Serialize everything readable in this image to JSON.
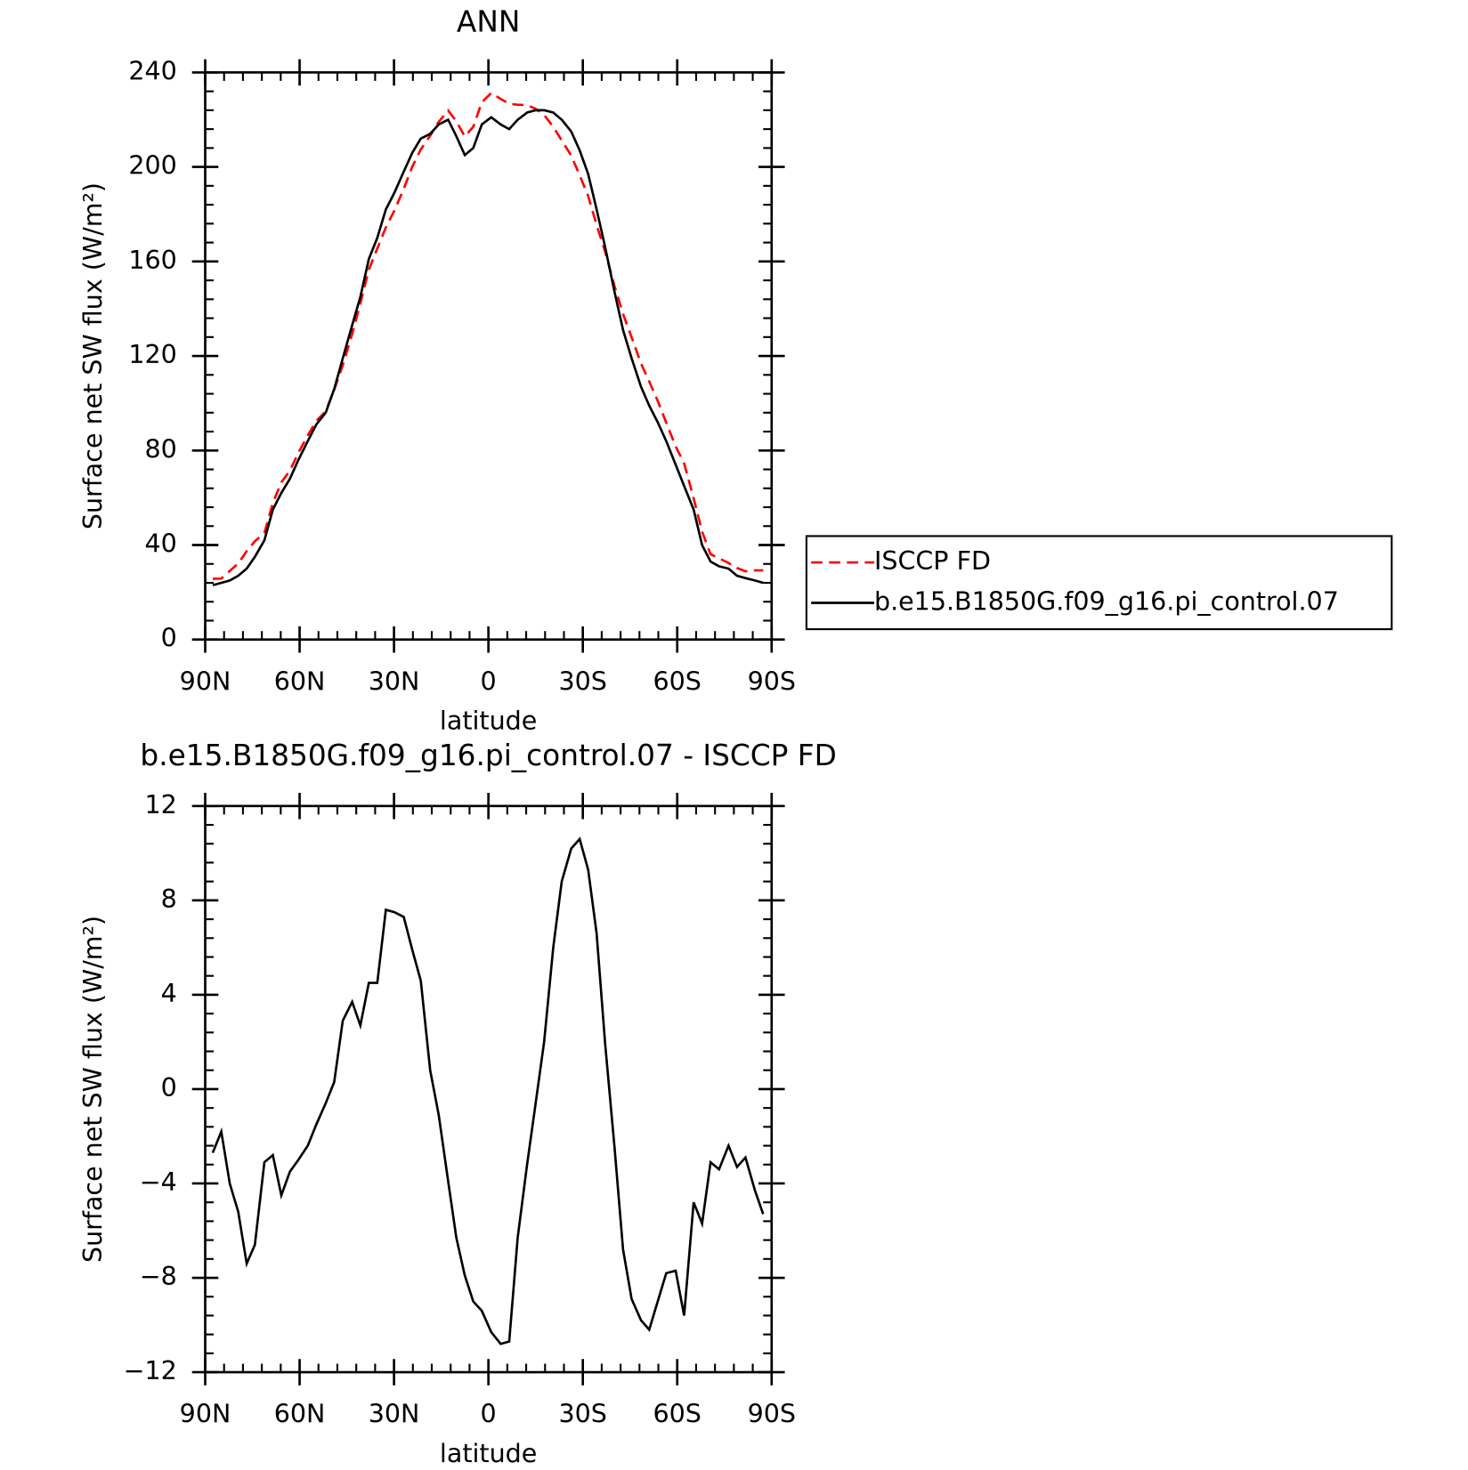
{
  "chart_data": [
    {
      "type": "line",
      "title": "ANN",
      "x_label": "latitude",
      "y_label": "Surface net SW flux (W/m²)",
      "xlim": [
        90,
        -90
      ],
      "xticks": [
        {
          "value": 90,
          "label": "90N"
        },
        {
          "value": 60,
          "label": "60N"
        },
        {
          "value": 30,
          "label": "30N"
        },
        0,
        {
          "value": -30,
          "label": "30S"
        },
        {
          "value": -60,
          "label": "60S"
        },
        {
          "value": -90,
          "label": "90S"
        }
      ],
      "ylim": [
        0,
        240
      ],
      "yticks": [
        0,
        40,
        80,
        120,
        160,
        200,
        240
      ],
      "grid": false,
      "legend": "right",
      "x": [
        87.6,
        84.9,
        82.2,
        79.5,
        76.8,
        74.2,
        71.2,
        68.5,
        65.8,
        63.1,
        60.4,
        57.4,
        54.7,
        51.7,
        49.0,
        46.3,
        43.3,
        40.7,
        38.0,
        35.3,
        32.6,
        29.9,
        26.9,
        24.2,
        21.5,
        18.5,
        15.8,
        12.8,
        10.2,
        7.5,
        4.8,
        2.1,
        -0.9,
        -3.9,
        -6.6,
        -9.3,
        -12.3,
        -15.0,
        -17.7,
        -20.6,
        -23.3,
        -26.3,
        -29.0,
        -31.7,
        -34.4,
        -37.1,
        -40.1,
        -42.8,
        -45.5,
        -48.5,
        -51.1,
        -53.8,
        -56.5,
        -59.5,
        -62.2,
        -65.2,
        -67.9,
        -70.6,
        -73.3,
        -76.3,
        -79.0,
        -81.7,
        -84.7,
        -87.3
      ],
      "series": [
        {
          "name": "ISCCP FD",
          "color": "#ff0000",
          "dash": true,
          "values": [
            25.7,
            25.8,
            29,
            32.2,
            37.4,
            41.6,
            45.1,
            57.8,
            66.5,
            71.5,
            79,
            86.4,
            92.5,
            96.6,
            105.7,
            116.1,
            129.3,
            142.3,
            156.5,
            165.5,
            174.4,
            181.5,
            190.7,
            200.1,
            207.4,
            213.2,
            219.1,
            223.9,
            219.3,
            212.9,
            217,
            227.4,
            231.3,
            228.8,
            226.7,
            226.3,
            226.2,
            224.6,
            222,
            217,
            211.2,
            204.8,
            196.4,
            187.7,
            175.4,
            164.1,
            149.5,
            137.8,
            127.9,
            116.8,
            109.2,
            101,
            91.8,
            81.7,
            74.6,
            59.8,
            45.7,
            36.1,
            34.4,
            32.4,
            30.3,
            28.9,
            29.3,
            29.3
          ]
        },
        {
          "name": "b.e15.B1850G.f09_g16.pi_control.07",
          "color": "#000000",
          "dash": false,
          "values": [
            23,
            24,
            25,
            27,
            30,
            35,
            42,
            55,
            62,
            68,
            76,
            84,
            91,
            96,
            106,
            119,
            133,
            145,
            161,
            170,
            182,
            189,
            198,
            206,
            212,
            214,
            218,
            220,
            213,
            205,
            208,
            218,
            221,
            218,
            216,
            220,
            223,
            224,
            224,
            223,
            220,
            215,
            207,
            197,
            182,
            166,
            147,
            131,
            119,
            107,
            99,
            92,
            84,
            74,
            65,
            55,
            40,
            33,
            31,
            30,
            27,
            26,
            25,
            24
          ]
        }
      ]
    },
    {
      "type": "line",
      "title": "b.e15.B1850G.f09_g16.pi_control.07 - ISCCP FD",
      "x_label": "latitude",
      "y_label": "Surface net SW flux (W/m²)",
      "xlim": [
        90,
        -90
      ],
      "xticks": [
        {
          "value": 90,
          "label": "90N"
        },
        {
          "value": 60,
          "label": "60N"
        },
        {
          "value": 30,
          "label": "30N"
        },
        0,
        {
          "value": -30,
          "label": "30S"
        },
        {
          "value": -60,
          "label": "60S"
        },
        {
          "value": -90,
          "label": "90S"
        }
      ],
      "ylim": [
        -12,
        12
      ],
      "yticks": [
        {
          "value": -12,
          "label": "−12"
        },
        {
          "value": -8,
          "label": "−8"
        },
        {
          "value": -4,
          "label": "−4"
        },
        0,
        4,
        8,
        12
      ],
      "grid": false,
      "x": [
        87.6,
        84.9,
        82.2,
        79.5,
        76.8,
        74.2,
        71.2,
        68.5,
        65.8,
        63.1,
        60.4,
        57.4,
        54.7,
        51.7,
        49.0,
        46.3,
        43.3,
        40.7,
        38.0,
        35.3,
        32.6,
        29.9,
        26.9,
        24.2,
        21.5,
        18.5,
        15.8,
        12.8,
        10.2,
        7.5,
        4.8,
        2.1,
        -0.9,
        -3.9,
        -6.6,
        -9.3,
        -12.3,
        -15.0,
        -17.7,
        -20.6,
        -23.3,
        -26.3,
        -29.0,
        -31.7,
        -34.4,
        -37.1,
        -40.1,
        -42.8,
        -45.5,
        -48.5,
        -51.1,
        -53.8,
        -56.5,
        -59.5,
        -62.2,
        -65.2,
        -67.9,
        -70.6,
        -73.3,
        -76.3,
        -79.0,
        -81.7,
        -84.7,
        -87.3
      ],
      "color": "#000000",
      "values": [
        -2.7,
        -1.8,
        -4.0,
        -5.2,
        -7.4,
        -6.6,
        -3.1,
        -2.8,
        -4.5,
        -3.5,
        -3.0,
        -2.4,
        -1.5,
        -0.6,
        0.3,
        2.9,
        3.7,
        2.7,
        4.5,
        4.5,
        7.6,
        7.5,
        7.3,
        5.9,
        4.6,
        0.8,
        -1.1,
        -3.9,
        -6.3,
        -7.9,
        -9.0,
        -9.4,
        -10.3,
        -10.8,
        -10.7,
        -6.3,
        -3.2,
        -0.6,
        2.0,
        6.0,
        8.8,
        10.2,
        10.6,
        9.3,
        6.6,
        1.9,
        -2.5,
        -6.8,
        -8.9,
        -9.8,
        -10.2,
        -9.0,
        -7.8,
        -7.7,
        -9.6,
        -4.8,
        -5.7,
        -3.1,
        -3.4,
        -2.4,
        -3.3,
        -2.9,
        -4.3,
        -5.3
      ]
    }
  ]
}
